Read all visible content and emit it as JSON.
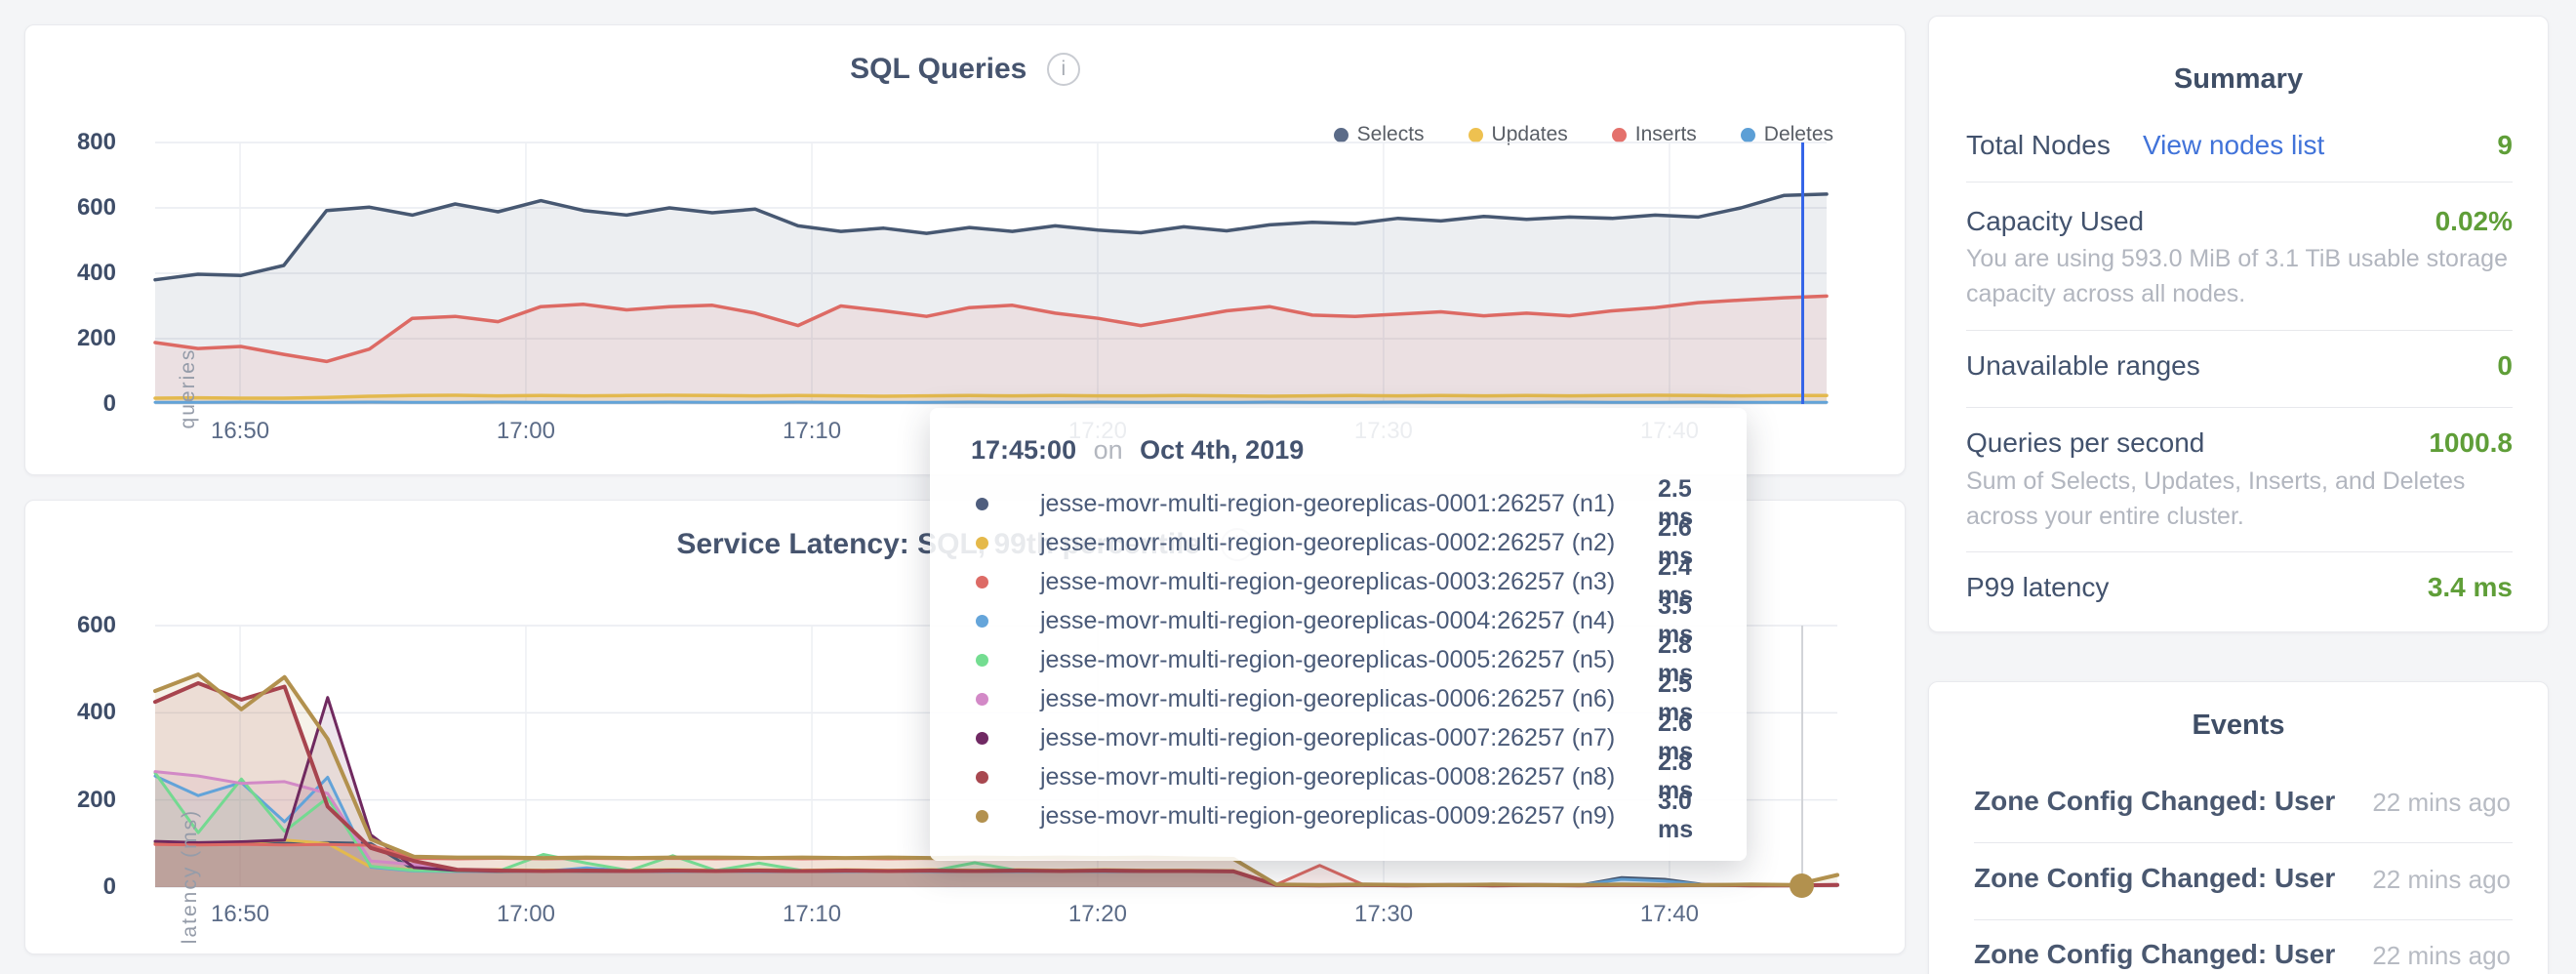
{
  "sql_chart": {
    "title": "SQL Queries",
    "y_axis_label": "queries",
    "legend": [
      {
        "label": "Selects",
        "color": "#5b6b88"
      },
      {
        "label": "Updates",
        "color": "#eec150"
      },
      {
        "label": "Inserts",
        "color": "#e4716c"
      },
      {
        "label": "Deletes",
        "color": "#5c9fd6"
      }
    ]
  },
  "latency_chart": {
    "title": "Service Latency: SQL, 99th percentile",
    "y_axis_label": "latency (ms)"
  },
  "tooltip": {
    "time": "17:45:00",
    "preposition": "on",
    "date": "Oct 4th, 2019",
    "rows": [
      {
        "color": "#4f5e7e",
        "name": "jesse-movr-multi-region-georeplicas-0001:26257 (n1)",
        "value": "2.5 ms"
      },
      {
        "color": "#e5b94a",
        "name": "jesse-movr-multi-region-georeplicas-0002:26257 (n2)",
        "value": "2.6 ms"
      },
      {
        "color": "#dd6b66",
        "name": "jesse-movr-multi-region-georeplicas-0003:26257 (n3)",
        "value": "2.4 ms"
      },
      {
        "color": "#65a5da",
        "name": "jesse-movr-multi-region-georeplicas-0004:26257 (n4)",
        "value": "3.5 ms"
      },
      {
        "color": "#74dd91",
        "name": "jesse-movr-multi-region-georeplicas-0005:26257 (n5)",
        "value": "2.8 ms"
      },
      {
        "color": "#d389c7",
        "name": "jesse-movr-multi-region-georeplicas-0006:26257 (n6)",
        "value": "2.5 ms"
      },
      {
        "color": "#702963",
        "name": "jesse-movr-multi-region-georeplicas-0007:26257 (n7)",
        "value": "2.6 ms"
      },
      {
        "color": "#a84850",
        "name": "jesse-movr-multi-region-georeplicas-0008:26257 (n8)",
        "value": "2.8 ms"
      },
      {
        "color": "#b3914f",
        "name": "jesse-movr-multi-region-georeplicas-0009:26257 (n9)",
        "value": "3.0 ms"
      }
    ]
  },
  "summary": {
    "title": "Summary",
    "total_nodes_label": "Total Nodes",
    "total_nodes_link": "View nodes list",
    "total_nodes_value": "9",
    "capacity_label": "Capacity Used",
    "capacity_value": "0.02%",
    "capacity_sub": "You are using 593.0 MiB of 3.1 TiB usable storage capacity across all nodes.",
    "unavailable_label": "Unavailable ranges",
    "unavailable_value": "0",
    "qps_label": "Queries per second",
    "qps_value": "1000.8",
    "qps_sub": "Sum of Selects, Updates, Inserts, and Deletes across your entire cluster.",
    "p99_label": "P99 latency",
    "p99_value": "3.4 ms"
  },
  "events": {
    "title": "Events",
    "rows": [
      {
        "label": "Zone Config Changed: User…",
        "time": "22 mins ago"
      },
      {
        "label": "Zone Config Changed: User…",
        "time": "22 mins ago"
      },
      {
        "label": "Zone Config Changed: User…",
        "time": "22 mins ago"
      }
    ]
  },
  "chart_data": [
    {
      "id": "sql-queries",
      "type": "area",
      "title": "SQL Queries",
      "ylabel": "queries",
      "ylim": [
        0,
        800
      ],
      "y_ticks": [
        0,
        200,
        400,
        600,
        800
      ],
      "x_ticks": [
        "16:50",
        "17:00",
        "17:10",
        "17:20",
        "17:30",
        "17:40"
      ],
      "x_tick_pos": [
        0.0508,
        0.2218,
        0.3929,
        0.5639,
        0.7349,
        0.906
      ],
      "x_range": "16:47 - 17:46, Oct 4th 2019",
      "grid": true,
      "legend_position": "top-right",
      "series": [
        {
          "name": "Selects",
          "color": "#475872",
          "fill": "rgba(71,88,114,0.10)",
          "width": 3.5,
          "values": [
            380,
            397,
            393,
            424,
            592,
            602,
            578,
            612,
            588,
            622,
            592,
            578,
            600,
            585,
            596,
            545,
            528,
            538,
            522,
            540,
            528,
            545,
            532,
            524,
            542,
            530,
            548,
            556,
            552,
            568,
            560,
            574,
            565,
            572,
            568,
            578,
            572,
            600,
            638,
            642
          ]
        },
        {
          "name": "Inserts",
          "color": "#dd6a64",
          "fill": "rgba(221,106,100,0.10)",
          "width": 3.5,
          "values": [
            188,
            170,
            176,
            152,
            130,
            168,
            262,
            268,
            252,
            298,
            305,
            288,
            298,
            302,
            278,
            240,
            300,
            285,
            268,
            295,
            302,
            278,
            262,
            240,
            262,
            285,
            298,
            272,
            268,
            275,
            282,
            270,
            278,
            270,
            285,
            295,
            310,
            318,
            325,
            330
          ]
        },
        {
          "name": "Updates",
          "color": "#e3b94e",
          "fill": "rgba(227,185,78,0.18)",
          "width": 3.5,
          "values": [
            18,
            19,
            18,
            18,
            20,
            24,
            26,
            27,
            25,
            26,
            25,
            26,
            27,
            26,
            25,
            26,
            25,
            24,
            25,
            26,
            25,
            26,
            25,
            25,
            26,
            25,
            24,
            25,
            26,
            25,
            26,
            25,
            26,
            25,
            26,
            27,
            26,
            25,
            26,
            26
          ]
        },
        {
          "name": "Deletes",
          "color": "#62a3d9",
          "fill": "rgba(98,163,217,0.15)",
          "width": 3,
          "values": [
            5,
            5,
            6,
            5,
            5,
            6,
            5,
            5,
            6,
            5,
            5,
            5,
            6,
            5,
            5,
            6,
            5,
            5,
            5,
            6,
            5,
            5,
            6,
            5,
            5,
            5,
            6,
            5,
            5,
            6,
            5,
            5,
            5,
            6,
            5,
            5,
            6,
            5,
            5,
            5
          ]
        }
      ]
    },
    {
      "id": "service-latency",
      "type": "area",
      "title": "Service Latency: SQL, 99th percentile",
      "ylabel": "latency (ms)",
      "ylim": [
        0,
        600
      ],
      "y_ticks": [
        0,
        200,
        400,
        600
      ],
      "x_ticks": [
        "16:50",
        "17:00",
        "17:10",
        "17:20",
        "17:30",
        "17:40"
      ],
      "x_tick_pos": [
        0.0505,
        0.2204,
        0.3904,
        0.5603,
        0.7303,
        0.9002
      ],
      "x_range": "16:47 - 17:46, Oct 4th 2019",
      "grid": true,
      "legend_position": "hidden-under-tooltip",
      "series": [
        {
          "name": "n1",
          "color": "#475872",
          "fill": "rgba(71,88,114,0.12)",
          "width": 3,
          "values": [
            100,
            100,
            101,
            100,
            102,
            100,
            40,
            37,
            36,
            37,
            36,
            37,
            36,
            37,
            36,
            37,
            36,
            37,
            36,
            37,
            36,
            37,
            36,
            37,
            36,
            36,
            5,
            4,
            5,
            4,
            5,
            4,
            5,
            4,
            22,
            18,
            5,
            4,
            4,
            5
          ]
        },
        {
          "name": "n2",
          "color": "#e3b94e",
          "fill": "rgba(227,185,78,0.12)",
          "width": 3,
          "values": [
            100,
            99,
            101,
            108,
            100,
            46,
            40,
            39,
            40,
            39,
            40,
            39,
            40,
            39,
            40,
            39,
            40,
            39,
            40,
            39,
            40,
            39,
            40,
            39,
            39,
            38,
            5,
            4,
            5,
            4,
            5,
            4,
            5,
            4,
            5,
            4,
            5,
            4,
            4,
            5
          ]
        },
        {
          "name": "n4",
          "color": "#62a3d9",
          "fill": "rgba(98,163,217,0.12)",
          "width": 3,
          "values": [
            255,
            210,
            240,
            150,
            252,
            46,
            37,
            36,
            37,
            36,
            44,
            37,
            36,
            37,
            36,
            37,
            36,
            37,
            36,
            37,
            36,
            37,
            36,
            37,
            36,
            36,
            5,
            4,
            5,
            4,
            5,
            4,
            5,
            4,
            18,
            14,
            5,
            4,
            4,
            5
          ]
        },
        {
          "name": "n5",
          "color": "#74d991",
          "fill": "rgba(116,217,145,0.12)",
          "width": 3,
          "values": [
            262,
            125,
            248,
            128,
            205,
            48,
            38,
            37,
            38,
            75,
            55,
            38,
            72,
            38,
            55,
            38,
            37,
            38,
            37,
            56,
            38,
            37,
            38,
            37,
            38,
            37,
            5,
            4,
            5,
            4,
            5,
            4,
            5,
            4,
            5,
            4,
            5,
            4,
            4,
            5
          ]
        },
        {
          "name": "n6",
          "color": "#d289c6",
          "fill": "rgba(210,137,198,0.12)",
          "width": 3,
          "values": [
            265,
            255,
            238,
            242,
            215,
            60,
            52,
            40,
            38,
            37,
            38,
            37,
            38,
            37,
            38,
            37,
            38,
            37,
            38,
            37,
            38,
            37,
            38,
            37,
            38,
            37,
            6,
            5,
            5,
            6,
            5,
            5,
            6,
            5,
            5,
            6,
            5,
            5,
            5,
            6
          ]
        },
        {
          "name": "n7",
          "color": "#70295f",
          "fill": "rgba(112,41,95,0.12)",
          "width": 3,
          "values": [
            105,
            102,
            104,
            108,
            435,
            120,
            45,
            38,
            37,
            38,
            37,
            36,
            37,
            38,
            37,
            36,
            37,
            38,
            37,
            36,
            37,
            38,
            37,
            36,
            37,
            36,
            5,
            4,
            5,
            4,
            5,
            4,
            5,
            4,
            5,
            4,
            5,
            4,
            4,
            5
          ]
        },
        {
          "name": "n3",
          "color": "#dd6a64",
          "fill": "rgba(221,106,100,0.12)",
          "width": 3,
          "values": [
            98,
            97,
            98,
            97,
            98,
            96,
            66,
            65,
            66,
            65,
            66,
            65,
            66,
            65,
            66,
            65,
            66,
            65,
            66,
            65,
            66,
            65,
            66,
            65,
            65,
            64,
            6,
            50,
            6,
            5,
            5,
            6,
            5,
            5,
            6,
            5,
            5,
            6,
            5,
            5
          ]
        },
        {
          "name": "n8",
          "color": "#a7444e",
          "fill": "rgba(167,68,78,0.12)",
          "width": 4,
          "values": [
            425,
            468,
            430,
            460,
            185,
            90,
            60,
            40,
            38,
            37,
            38,
            37,
            38,
            37,
            38,
            37,
            38,
            37,
            38,
            37,
            38,
            37,
            38,
            37,
            37,
            36,
            5,
            4,
            5,
            4,
            5,
            4,
            5,
            4,
            5,
            4,
            5,
            4,
            4,
            5
          ]
        },
        {
          "name": "n9",
          "color": "#b2914e",
          "fill": "rgba(178,145,78,0.12)",
          "width": 4,
          "values": [
            450,
            488,
            408,
            482,
            340,
            110,
            70,
            68,
            68,
            67,
            68,
            67,
            68,
            68,
            67,
            68,
            67,
            68,
            67,
            68,
            67,
            68,
            67,
            68,
            66,
            65,
            6,
            5,
            6,
            5,
            5,
            6,
            5,
            5,
            6,
            5,
            5,
            6,
            5,
            28
          ]
        }
      ]
    }
  ]
}
